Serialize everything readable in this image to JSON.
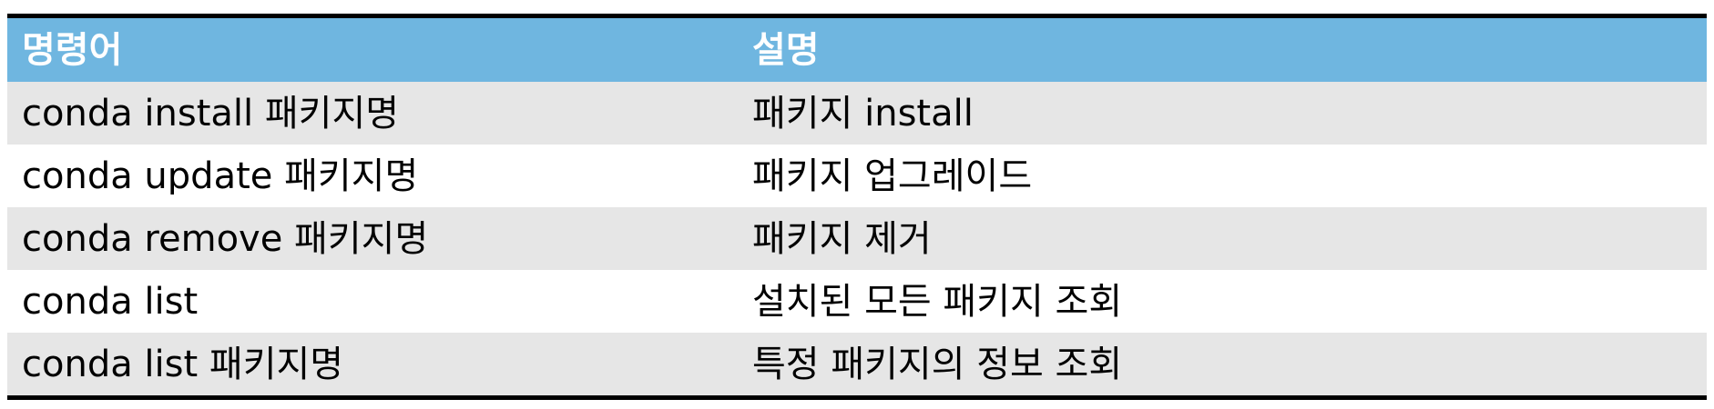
{
  "table": {
    "headers": {
      "command": "명령어",
      "description": "설명"
    },
    "rows": [
      {
        "command": "conda install 패키지명",
        "description": "패키지 install"
      },
      {
        "command": "conda update 패키지명",
        "description": "패키지 업그레이드"
      },
      {
        "command": "conda remove 패키지명",
        "description": "패키지 제거"
      },
      {
        "command": "conda list",
        "description": "설치된 모든 패키지 조회"
      },
      {
        "command": "conda list 패키지명",
        "description": "특정 패키지의 정보 조회"
      }
    ]
  },
  "colors": {
    "header_bg": "#6fb6e0",
    "header_text": "#ffffff",
    "shaded_row_bg": "#e6e6e6",
    "rule": "#000000"
  }
}
